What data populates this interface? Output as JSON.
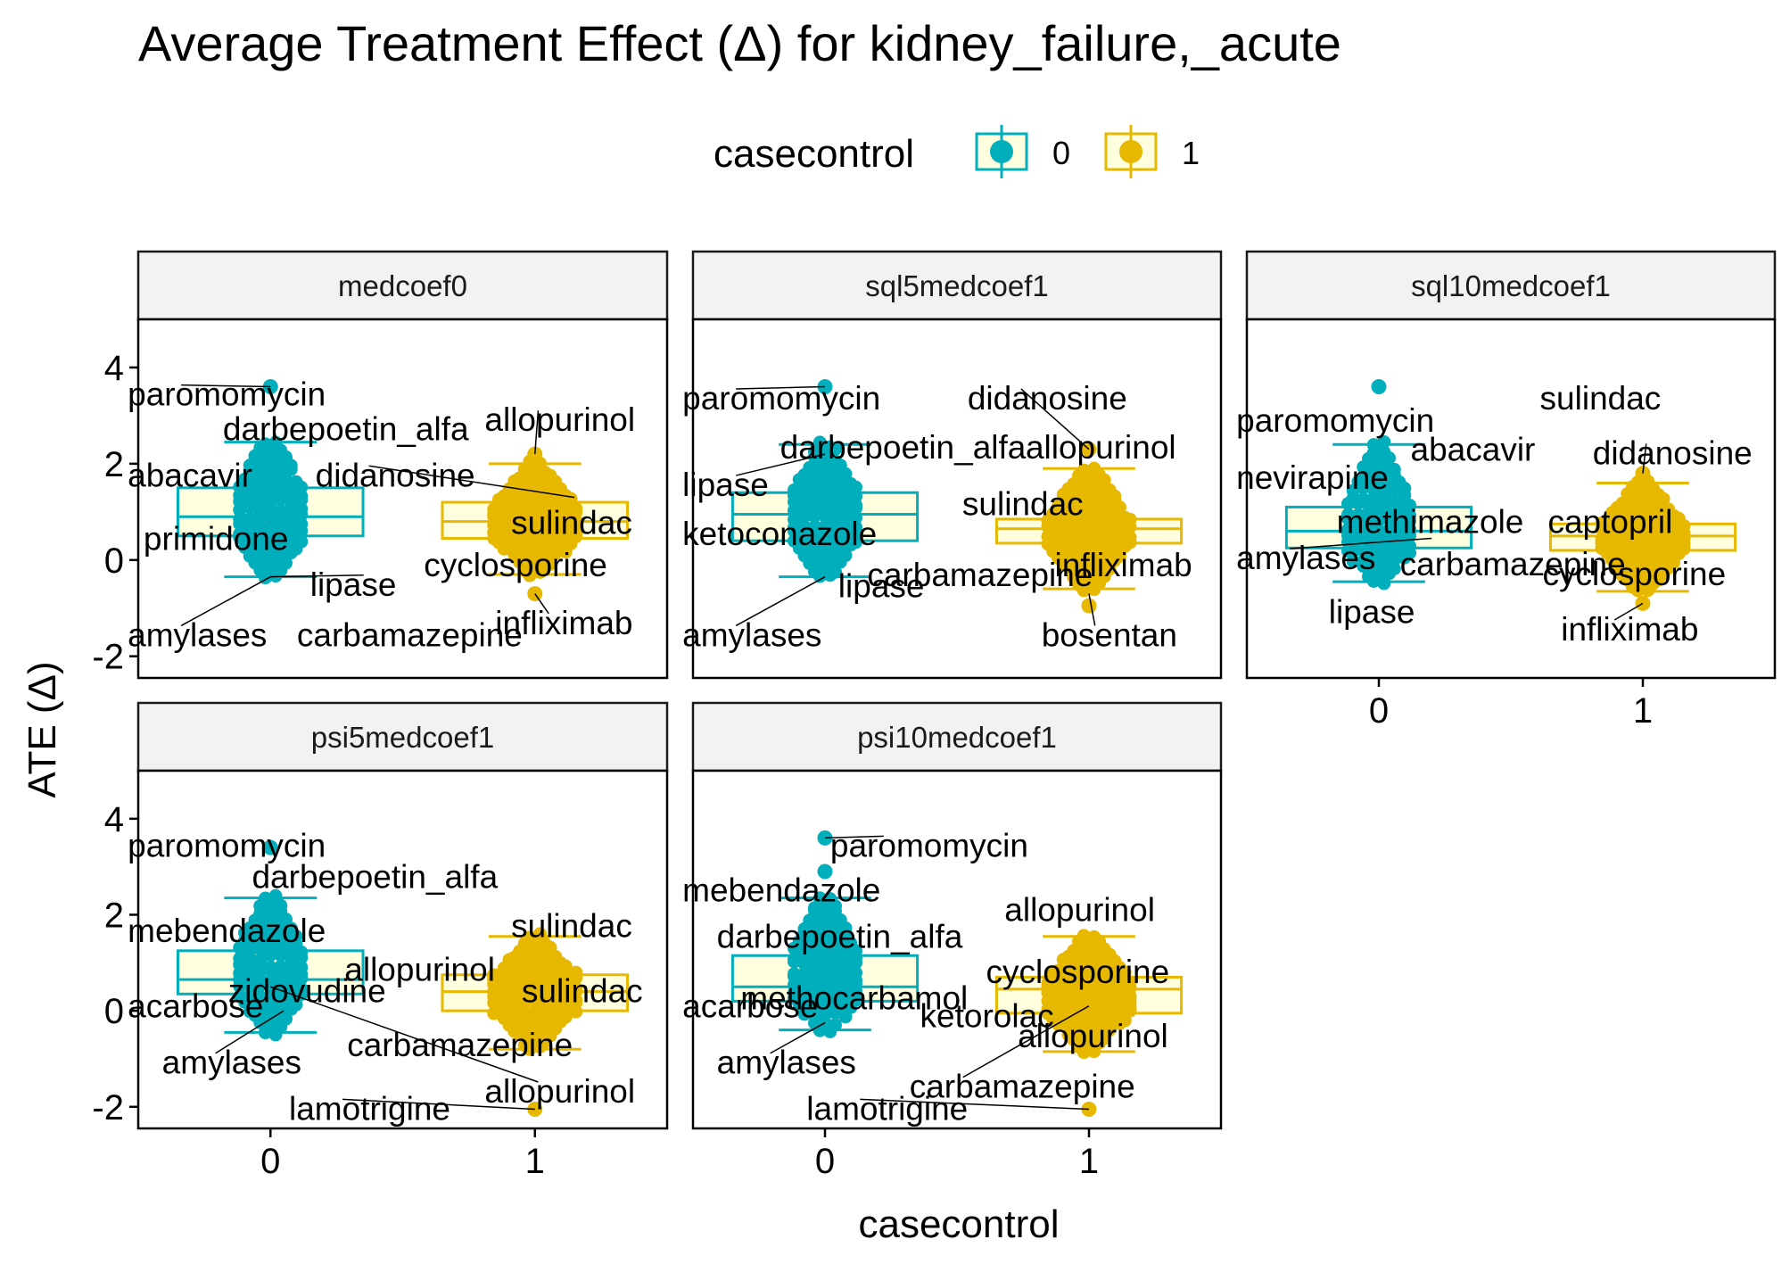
{
  "title": "Average Treatment Effect (Δ) for kidney_failure,_acute",
  "legend": {
    "title": "casecontrol",
    "items": [
      {
        "label": "0",
        "color": "#00AFBB"
      },
      {
        "label": "1",
        "color": "#E7B800"
      }
    ]
  },
  "colors": {
    "group0": "#00AFBB",
    "group1": "#E7B800",
    "box_fill": "#FFFFE0",
    "strip_fill": "#F2F2F2"
  },
  "chart_data": {
    "type": "box plot with dot plot (faceted)",
    "xlabel": "casecontrol",
    "ylabel": "ATE (Δ)",
    "categories": [
      "0",
      "1"
    ],
    "ylim": [
      -2.45,
      5.0
    ],
    "y_ticks": [
      -2,
      0,
      2,
      4
    ],
    "y_tick_labels": [
      "-2",
      "0",
      "2",
      "4"
    ],
    "x_tick_labels": [
      "0",
      "1"
    ],
    "facets": [
      {
        "name": "medcoef0",
        "boxes": [
          {
            "group": "0",
            "whisker_low": -0.35,
            "q1": 0.5,
            "median": 0.9,
            "q3": 1.5,
            "whisker_high": 2.45
          },
          {
            "group": "1",
            "whisker_low": -0.3,
            "q1": 0.45,
            "median": 0.8,
            "q3": 1.2,
            "whisker_high": 2.0
          }
        ],
        "outliers": [
          {
            "group": "0",
            "y": 3.6
          },
          {
            "group": "1",
            "y": 2.2
          },
          {
            "group": "1",
            "y": -0.7
          }
        ],
        "labels": [
          {
            "text": "paromomycin",
            "x": -0.54,
            "y": 3.45,
            "px": 0.0,
            "py": 3.6
          },
          {
            "text": "darbepoetin_alfa",
            "x": -0.18,
            "y": 2.73
          },
          {
            "text": "allopurinol",
            "x": 0.81,
            "y": 2.92,
            "px": 1.0,
            "py": 2.2
          },
          {
            "text": "abacavir",
            "x": -0.54,
            "y": 1.77
          },
          {
            "text": "didanosine",
            "x": 0.17,
            "y": 1.77,
            "px": 1.15,
            "py": 1.3
          },
          {
            "text": "sulindac",
            "x": 0.91,
            "y": 0.78
          },
          {
            "text": "primidone",
            "x": -0.48,
            "y": 0.45
          },
          {
            "text": "cyclosporine",
            "x": 0.58,
            "y": -0.1
          },
          {
            "text": "lipase",
            "x": 0.15,
            "y": -0.5,
            "px": 0.0,
            "py": -0.35
          },
          {
            "text": "infliximab",
            "x": 0.85,
            "y": -1.3,
            "px": 1.0,
            "py": -0.7
          },
          {
            "text": "amylases",
            "x": -0.54,
            "y": -1.55,
            "px": 0.0,
            "py": -0.35
          },
          {
            "text": "carbamazepine",
            "x": 0.1,
            "y": -1.55
          }
        ]
      },
      {
        "name": "sql5medcoef1",
        "boxes": [
          {
            "group": "0",
            "whisker_low": -0.35,
            "q1": 0.4,
            "median": 0.95,
            "q3": 1.4,
            "whisker_high": 2.4
          },
          {
            "group": "1",
            "whisker_low": -0.6,
            "q1": 0.35,
            "median": 0.65,
            "q3": 0.85,
            "whisker_high": 1.9
          }
        ],
        "outliers": [
          {
            "group": "0",
            "y": 3.6
          },
          {
            "group": "1",
            "y": -0.95
          },
          {
            "group": "1",
            "y": 2.3
          }
        ],
        "labels": [
          {
            "text": "paromomycin",
            "x": -0.54,
            "y": 3.37,
            "px": 0.0,
            "py": 3.6
          },
          {
            "text": "didanosine",
            "x": 0.54,
            "y": 3.37,
            "px": 1.0,
            "py": 2.3
          },
          {
            "text": "darbepoetin_alfa",
            "x": -0.17,
            "y": 2.35
          },
          {
            "text": "allopurinol",
            "x": 0.76,
            "y": 2.35
          },
          {
            "text": "lipase",
            "x": -0.54,
            "y": 1.57,
            "px": 0.0,
            "py": 2.2
          },
          {
            "text": "sulindac",
            "x": 0.52,
            "y": 1.17
          },
          {
            "text": "ketoconazole",
            "x": -0.54,
            "y": 0.55
          },
          {
            "text": "infliximab",
            "x": 0.87,
            "y": -0.1
          },
          {
            "text": "carbamazepine",
            "x": 0.16,
            "y": -0.3
          },
          {
            "text": "lipase",
            "x": 0.05,
            "y": -0.53
          },
          {
            "text": "amylases",
            "x": -0.54,
            "y": -1.55,
            "px": 0.0,
            "py": -0.35
          },
          {
            "text": "bosentan",
            "x": 0.82,
            "y": -1.55,
            "px": 1.0,
            "py": -0.7
          }
        ]
      },
      {
        "name": "sql10medcoef1",
        "boxes": [
          {
            "group": "0",
            "whisker_low": -0.45,
            "q1": 0.25,
            "median": 0.6,
            "q3": 1.1,
            "whisker_high": 2.4
          },
          {
            "group": "1",
            "whisker_low": -0.65,
            "q1": 0.2,
            "median": 0.5,
            "q3": 0.75,
            "whisker_high": 1.6
          }
        ],
        "outliers": [
          {
            "group": "0",
            "y": 3.6
          },
          {
            "group": "1",
            "y": 1.8
          },
          {
            "group": "1",
            "y": -0.9
          }
        ],
        "labels": [
          {
            "text": "sulindac",
            "x": 0.61,
            "y": 3.37
          },
          {
            "text": "paromomycin",
            "x": -0.54,
            "y": 2.91
          },
          {
            "text": "abacavir",
            "x": 0.12,
            "y": 2.3
          },
          {
            "text": "didanosine",
            "x": 0.81,
            "y": 2.23,
            "px": 1.0,
            "py": 1.8
          },
          {
            "text": "nevirapine",
            "x": -0.54,
            "y": 1.72
          },
          {
            "text": "methimazole",
            "x": -0.16,
            "y": 0.8
          },
          {
            "text": "captopril",
            "x": 0.64,
            "y": 0.8
          },
          {
            "text": "amylases",
            "x": -0.54,
            "y": 0.05,
            "px": 0.2,
            "py": 0.45
          },
          {
            "text": "carbamazepine",
            "x": 0.08,
            "y": -0.08
          },
          {
            "text": "cyclosporine",
            "x": 0.62,
            "y": -0.28
          },
          {
            "text": "lipase",
            "x": -0.19,
            "y": -1.07
          },
          {
            "text": "infliximab",
            "x": 0.69,
            "y": -1.43,
            "px": 1.0,
            "py": -0.9
          }
        ]
      },
      {
        "name": "psi5medcoef1",
        "boxes": [
          {
            "group": "0",
            "whisker_low": -0.45,
            "q1": 0.35,
            "median": 0.65,
            "q3": 1.25,
            "whisker_high": 2.35
          },
          {
            "group": "1",
            "whisker_low": -0.8,
            "q1": 0.0,
            "median": 0.4,
            "q3": 0.75,
            "whisker_high": 1.55
          }
        ],
        "outliers": [
          {
            "group": "0",
            "y": 3.4
          },
          {
            "group": "1",
            "y": -2.05
          }
        ],
        "labels": [
          {
            "text": "paromomycin",
            "x": -0.54,
            "y": 3.45
          },
          {
            "text": "darbepoetin_alfa",
            "x": -0.07,
            "y": 2.8
          },
          {
            "text": "sulindac",
            "x": 0.91,
            "y": 1.78
          },
          {
            "text": "mebendazole",
            "x": -0.54,
            "y": 1.67
          },
          {
            "text": "allopurinol",
            "x": 0.28,
            "y": 0.87
          },
          {
            "text": "zidovudine",
            "x": -0.16,
            "y": 0.42
          },
          {
            "text": "sulindac",
            "x": 0.95,
            "y": 0.42
          },
          {
            "text": "acarbose",
            "x": -0.54,
            "y": 0.1
          },
          {
            "text": "carbamazepine",
            "x": 0.29,
            "y": -0.7
          },
          {
            "text": "amylases",
            "x": -0.41,
            "y": -1.07,
            "px": 0.05,
            "py": 0.0
          },
          {
            "text": "allopurinol",
            "x": 0.81,
            "y": -1.67,
            "px": 0.0,
            "py": 0.5
          },
          {
            "text": "lamotrigine",
            "x": 0.07,
            "y": -2.03,
            "px": 1.0,
            "py": -2.05
          }
        ]
      },
      {
        "name": "psi10medcoef1",
        "boxes": [
          {
            "group": "0",
            "whisker_low": -0.4,
            "q1": 0.2,
            "median": 0.5,
            "q3": 1.15,
            "whisker_high": 2.35
          },
          {
            "group": "1",
            "whisker_low": -0.85,
            "q1": -0.05,
            "median": 0.45,
            "q3": 0.7,
            "whisker_high": 1.55
          }
        ],
        "outliers": [
          {
            "group": "0",
            "y": 3.6
          },
          {
            "group": "0",
            "y": 2.9
          },
          {
            "group": "1",
            "y": -2.05
          }
        ],
        "labels": [
          {
            "text": "paromomycin",
            "x": 0.02,
            "y": 3.45,
            "px": 0.0,
            "py": 3.6
          },
          {
            "text": "mebendazole",
            "x": -0.54,
            "y": 2.52
          },
          {
            "text": "allopurinol",
            "x": 0.68,
            "y": 2.11
          },
          {
            "text": "darbepoetin_alfa",
            "x": -0.41,
            "y": 1.55
          },
          {
            "text": "cyclosporine",
            "x": 0.61,
            "y": 0.82
          },
          {
            "text": "methocarbamol",
            "x": -0.32,
            "y": 0.27
          },
          {
            "text": "acarbose",
            "x": -0.54,
            "y": 0.1
          },
          {
            "text": "ketorolac",
            "x": 0.36,
            "y": -0.1
          },
          {
            "text": "allopurinol",
            "x": 0.73,
            "y": -0.52
          },
          {
            "text": "amylases",
            "x": -0.41,
            "y": -1.07,
            "px": 0.0,
            "py": -0.25
          },
          {
            "text": "carbamazepine",
            "x": 0.32,
            "y": -1.57,
            "px": 1.0,
            "py": 0.1
          },
          {
            "text": "lamotrigine",
            "x": -0.07,
            "y": -2.03,
            "px": 1.0,
            "py": -2.05
          }
        ]
      }
    ]
  }
}
